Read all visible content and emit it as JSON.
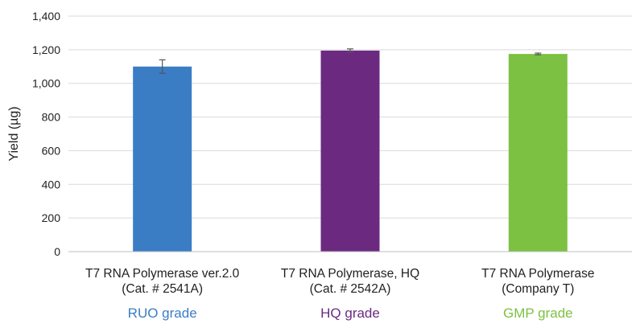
{
  "chart_data": {
    "type": "bar",
    "ylabel": "Yield (µg)",
    "ylim": [
      0,
      1400
    ],
    "yticks": [
      0,
      200,
      400,
      600,
      800,
      1000,
      1200,
      1400
    ],
    "ytick_labels": [
      "0",
      "200",
      "400",
      "600",
      "800",
      "1,000",
      "1,200",
      "1,400"
    ],
    "grid": true,
    "categories": [
      {
        "line1": "T7 RNA Polymerase ver.2.0",
        "line2": "(Cat. # 2541A)",
        "grade": "RUO grade",
        "value": 1100,
        "error": 40,
        "color": "#3a7dc4"
      },
      {
        "line1": "T7 RNA Polymerase, HQ",
        "line2": "(Cat. # 2542A)",
        "grade": "HQ grade",
        "value": 1195,
        "error": 10,
        "color": "#6b2a80"
      },
      {
        "line1": "T7 RNA Polymerase",
        "line2": "(Company T)",
        "grade": "GMP grade",
        "value": 1175,
        "error": 5,
        "color": "#7cc142"
      }
    ]
  }
}
